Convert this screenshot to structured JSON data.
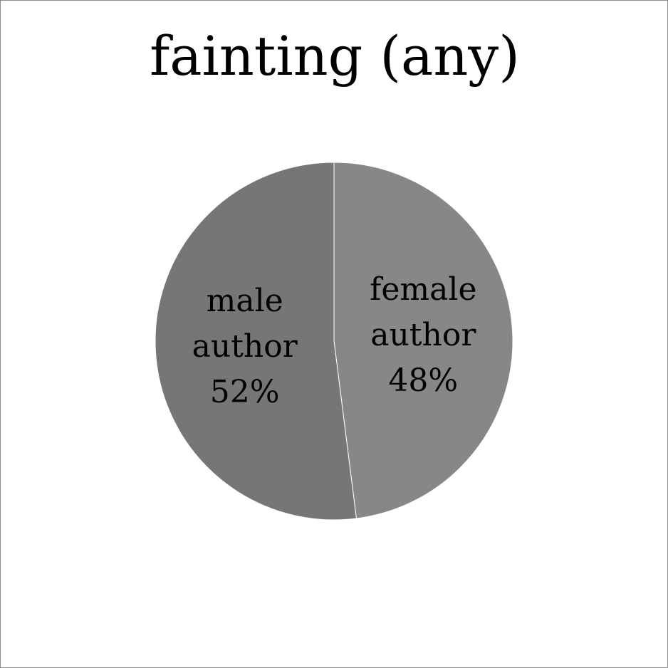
{
  "chart_data": {
    "type": "pie",
    "title": "fainting (any)",
    "slices": [
      {
        "label": "female author",
        "label_lines": [
          "female",
          "author"
        ],
        "value": 48,
        "value_text": "48%",
        "color": "#878787"
      },
      {
        "label": "male author",
        "label_lines": [
          "male",
          "author"
        ],
        "value": 52,
        "value_text": "52%",
        "color": "#767676"
      }
    ],
    "start": "12 o'clock",
    "direction": "clockwise",
    "legend": "none"
  }
}
